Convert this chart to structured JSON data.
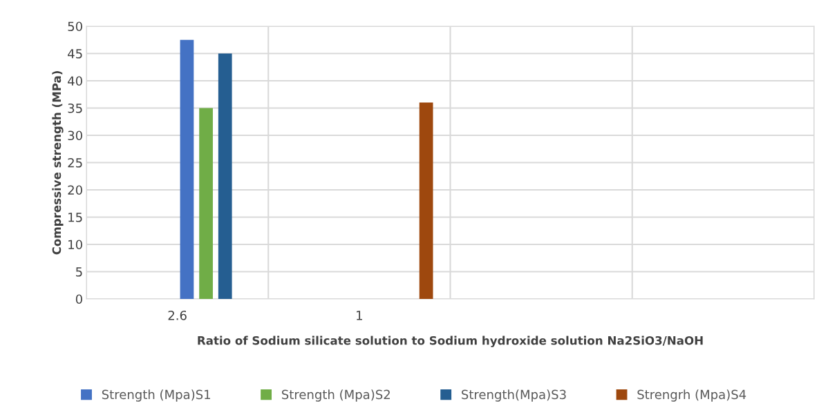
{
  "chart_data": {
    "type": "bar",
    "xlabel": "Ratio of Sodium silicate solution to Sodium hydroxide solution Na2SiO3/NaOH",
    "ylabel": "Compressive strength (MPa)",
    "categories": [
      "2.6",
      "1",
      null,
      null
    ],
    "series": [
      {
        "name": "Strength (Mpa)S1",
        "color": "#4472c4",
        "values": [
          47.5,
          null,
          null,
          null
        ]
      },
      {
        "name": "Strength (Mpa)S2",
        "color": "#70ad47",
        "values": [
          35,
          null,
          null,
          null
        ]
      },
      {
        "name": "Strength(Mpa)S3",
        "color": "#255e91",
        "values": [
          45,
          null,
          null,
          null
        ]
      },
      {
        "name": "Strengrh (Mpa)S4",
        "color": "#9e480e",
        "values": [
          null,
          36,
          null,
          null
        ]
      }
    ],
    "ylim": [
      0,
      50
    ],
    "yticks": [
      0,
      5,
      10,
      15,
      20,
      25,
      30,
      35,
      40,
      45,
      50
    ],
    "grid": true,
    "legend": "bottom"
  }
}
